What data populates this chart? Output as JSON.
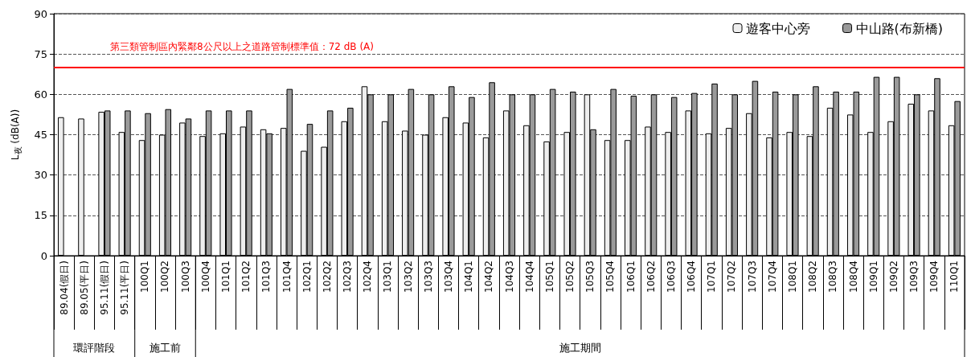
{
  "chart_data": {
    "type": "bar",
    "ylabel": "L$_{夜}$ (dB(A))",
    "categories": [
      "89.04(假日)",
      "89.05(平日)",
      "95.11(假日)",
      "95.11(平日)",
      "100Q1",
      "100Q2",
      "100Q3",
      "100Q4",
      "101Q1",
      "101Q2",
      "101Q3",
      "101Q4",
      "102Q1",
      "102Q2",
      "102Q3",
      "102Q4",
      "103Q1",
      "103Q2",
      "103Q3",
      "103Q4",
      "104Q1",
      "104Q2",
      "104Q3",
      "104Q4",
      "105Q1",
      "105Q2",
      "105Q3",
      "105Q4",
      "106Q1",
      "106Q2",
      "106Q3",
      "106Q4",
      "107Q1",
      "107Q2",
      "107Q3",
      "107Q4",
      "108Q1",
      "108Q2",
      "108Q3",
      "108Q4",
      "109Q1",
      "109Q2",
      "109Q3",
      "109Q4",
      "110Q1"
    ],
    "series": [
      {
        "name": "遊客中心旁",
        "color": "#eeeeee",
        "values": [
          51.5,
          51,
          53.5,
          46,
          43,
          45,
          49.5,
          44.5,
          45.5,
          48,
          47,
          47.5,
          39,
          40.5,
          50,
          63,
          50,
          46.5,
          45,
          51.5,
          49.5,
          44,
          54,
          48.5,
          42.5,
          46,
          60,
          43,
          43,
          48,
          46,
          54,
          45.5,
          47.5,
          53,
          44,
          46,
          44.5,
          55,
          52.5,
          46,
          50,
          56.5,
          54,
          48.5
        ]
      },
      {
        "name": "中山路(布新橋)",
        "color": "#9a9a9a",
        "values": [
          null,
          null,
          54,
          54,
          53,
          54.5,
          51,
          54,
          54,
          54,
          45.5,
          62,
          49,
          54,
          55,
          60,
          60,
          62,
          60,
          63,
          59,
          64.5,
          60,
          60,
          62,
          61,
          47,
          62,
          59.5,
          60,
          59,
          60.5,
          64,
          60,
          65,
          61,
          60,
          63,
          61,
          61,
          66.5,
          66.5,
          60,
          66,
          57.5
        ]
      }
    ],
    "ylim": [
      0,
      90
    ],
    "yticks": [
      0,
      15,
      30,
      45,
      60,
      75,
      90
    ],
    "grid": "y",
    "legend": "top right",
    "ref_lines": [
      {
        "axis": "y",
        "value": 70,
        "label": "第三類管制區內緊鄰8公尺以上之道路管制標準值：72 dB (A)",
        "color": "#ff0000"
      }
    ],
    "annotations": [
      "環評階段",
      "施工前",
      "施工期間"
    ]
  }
}
